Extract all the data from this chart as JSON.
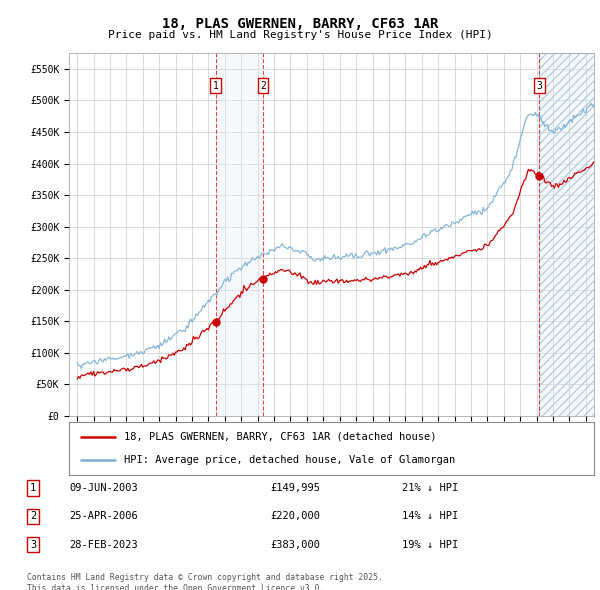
{
  "title": "18, PLAS GWERNEN, BARRY, CF63 1AR",
  "subtitle": "Price paid vs. HM Land Registry's House Price Index (HPI)",
  "ylabel_ticks": [
    "£0",
    "£50K",
    "£100K",
    "£150K",
    "£200K",
    "£250K",
    "£300K",
    "£350K",
    "£400K",
    "£450K",
    "£500K",
    "£550K"
  ],
  "ytick_vals": [
    0,
    50000,
    100000,
    150000,
    200000,
    250000,
    300000,
    350000,
    400000,
    450000,
    500000,
    550000
  ],
  "ylim": [
    0,
    575000
  ],
  "xlim_start": 1994.5,
  "xlim_end": 2026.5,
  "transactions": [
    {
      "num": 1,
      "date": "09-JUN-2003",
      "price": 149995,
      "year": 2003.44,
      "label": "21% ↓ HPI"
    },
    {
      "num": 2,
      "date": "25-APR-2006",
      "price": 220000,
      "year": 2006.32,
      "label": "14% ↓ HPI"
    },
    {
      "num": 3,
      "date": "28-FEB-2023",
      "price": 383000,
      "year": 2023.16,
      "label": "19% ↓ HPI"
    }
  ],
  "legend_line1": "18, PLAS GWERNEN, BARRY, CF63 1AR (detached house)",
  "legend_line2": "HPI: Average price, detached house, Vale of Glamorgan",
  "footnote": "Contains HM Land Registry data © Crown copyright and database right 2025.\nThis data is licensed under the Open Government Licence v3.0.",
  "line_color_property": "#cc0000",
  "line_color_hpi": "#7aafd4",
  "background_color": "#ffffff",
  "grid_color": "#cccccc",
  "shade_color": "#d8e8f4",
  "transaction_box_color": "#cc0000"
}
